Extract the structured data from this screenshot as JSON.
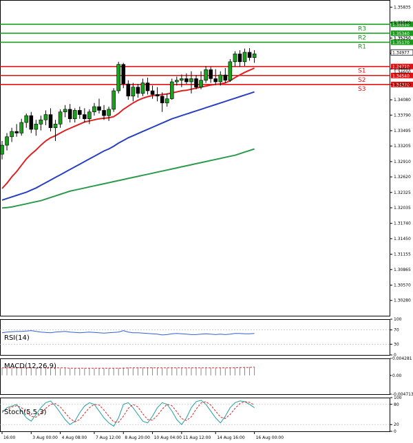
{
  "chart_data": {
    "type": "candlestick",
    "main": {
      "ylim": [
        1.2999,
        1.3597
      ],
      "y_ticks": [
        "1.35835",
        "1.35540",
        "1.35250",
        "1.34960",
        "1.34665",
        "1.34370",
        "1.34080",
        "1.33790",
        "1.33495",
        "1.33205",
        "1.32910",
        "1.32620",
        "1.32325",
        "1.32035",
        "1.31740",
        "1.31450",
        "1.31155",
        "1.30865",
        "1.30570",
        "1.30280"
      ],
      "price_tag": {
        "label": "1.34977",
        "value": 1.34977
      },
      "levels": [
        {
          "name": "R3",
          "label": "1.35510",
          "value": 1.3551,
          "color": "#1a9a1a"
        },
        {
          "name": "R2",
          "label": "1.35340",
          "value": 1.3534,
          "color": "#1a9a1a"
        },
        {
          "name": "R1",
          "label": "1.35170",
          "value": 1.3517,
          "color": "#1a9a1a"
        },
        {
          "name": "S1",
          "label": "1.34710",
          "value": 1.3471,
          "color": "#e01010"
        },
        {
          "name": "S2",
          "label": "1.34540",
          "value": 1.3454,
          "color": "#e01010"
        },
        {
          "name": "S3",
          "label": "1.34370",
          "value": 1.3437,
          "color": "#e01010"
        }
      ],
      "extra_labels": [
        "1.35250",
        "1.34600"
      ],
      "candles": [
        [
          1.3305,
          1.333,
          1.3295,
          1.3322
        ],
        [
          1.3322,
          1.3345,
          1.3312,
          1.3338
        ],
        [
          1.3338,
          1.3355,
          1.3328,
          1.3348
        ],
        [
          1.3348,
          1.3362,
          1.3338,
          1.3345
        ],
        [
          1.3345,
          1.3372,
          1.334,
          1.3365
        ],
        [
          1.3365,
          1.3382,
          1.3355,
          1.3378
        ],
        [
          1.3378,
          1.3385,
          1.3345,
          1.3352
        ],
        [
          1.3352,
          1.337,
          1.334,
          1.3362
        ],
        [
          1.3362,
          1.3378,
          1.335,
          1.337
        ],
        [
          1.337,
          1.3388,
          1.336,
          1.338
        ],
        [
          1.338,
          1.3392,
          1.3348,
          1.3355
        ],
        [
          1.3355,
          1.337,
          1.333,
          1.3362
        ],
        [
          1.3362,
          1.339,
          1.3355,
          1.3385
        ],
        [
          1.3385,
          1.3398,
          1.3375,
          1.339
        ],
        [
          1.339,
          1.34,
          1.3365,
          1.3372
        ],
        [
          1.3372,
          1.3392,
          1.3365,
          1.3388
        ],
        [
          1.3388,
          1.3395,
          1.3372,
          1.338
        ],
        [
          1.338,
          1.3392,
          1.3365,
          1.3372
        ],
        [
          1.3372,
          1.339,
          1.3362,
          1.3385
        ],
        [
          1.3385,
          1.3402,
          1.3378,
          1.3395
        ],
        [
          1.3395,
          1.341,
          1.3382,
          1.3388
        ],
        [
          1.3388,
          1.3398,
          1.337,
          1.3378
        ],
        [
          1.3378,
          1.3395,
          1.3368,
          1.339
        ],
        [
          1.339,
          1.343,
          1.3385,
          1.3425
        ],
        [
          1.3425,
          1.348,
          1.342,
          1.3475
        ],
        [
          1.3475,
          1.3478,
          1.343,
          1.3438
        ],
        [
          1.3438,
          1.3445,
          1.3408,
          1.3415
        ],
        [
          1.3415,
          1.344,
          1.3405,
          1.3432
        ],
        [
          1.3432,
          1.3438,
          1.3412,
          1.342
        ],
        [
          1.342,
          1.3448,
          1.3415,
          1.344
        ],
        [
          1.344,
          1.345,
          1.3418,
          1.3425
        ],
        [
          1.3425,
          1.3435,
          1.341,
          1.3418
        ],
        [
          1.3418,
          1.3432,
          1.3405,
          1.3415
        ],
        [
          1.3415,
          1.3422,
          1.3385,
          1.3402
        ],
        [
          1.3402,
          1.342,
          1.3395,
          1.341
        ],
        [
          1.341,
          1.3448,
          1.3408,
          1.3442
        ],
        [
          1.3442,
          1.3452,
          1.3435,
          1.3445
        ],
        [
          1.3445,
          1.3456,
          1.3432,
          1.3448
        ],
        [
          1.3448,
          1.3458,
          1.3438,
          1.3442
        ],
        [
          1.3442,
          1.3462,
          1.342,
          1.3448
        ],
        [
          1.3448,
          1.3455,
          1.3428,
          1.3432
        ],
        [
          1.3432,
          1.3462,
          1.3428,
          1.3445
        ],
        [
          1.3445,
          1.3472,
          1.344,
          1.3465
        ],
        [
          1.3465,
          1.347,
          1.344,
          1.3448
        ],
        [
          1.3448,
          1.3466,
          1.3436,
          1.3442
        ],
        [
          1.3442,
          1.3462,
          1.3435,
          1.3455
        ],
        [
          1.3455,
          1.3468,
          1.344,
          1.3445
        ],
        [
          1.3445,
          1.3485,
          1.3442,
          1.348
        ],
        [
          1.348,
          1.35,
          1.347,
          1.3495
        ],
        [
          1.3495,
          1.3502,
          1.347,
          1.348
        ],
        [
          1.348,
          1.3505,
          1.3472,
          1.3498
        ],
        [
          1.3498,
          1.3506,
          1.3482,
          1.3488
        ],
        [
          1.3488,
          1.3502,
          1.3478,
          1.3495
        ]
      ],
      "moving_averages": [
        {
          "color": "#e02020",
          "values": [
            1.324,
            1.325,
            1.3262,
            1.3272,
            1.3284,
            1.3296,
            1.3305,
            1.3313,
            1.3322,
            1.333,
            1.3336,
            1.334,
            1.3345,
            1.335,
            1.3354,
            1.3358,
            1.3362,
            1.3366,
            1.3368,
            1.337,
            1.3372,
            1.3373,
            1.3374,
            1.3376,
            1.3382,
            1.339,
            1.3396,
            1.3402,
            1.3407,
            1.3411,
            1.3414,
            1.3416,
            1.3417,
            1.3418,
            1.3419,
            1.3421,
            1.3423,
            1.3425,
            1.3426,
            1.3428,
            1.343,
            1.3432,
            1.3434,
            1.3436,
            1.3437,
            1.3438,
            1.344,
            1.3444,
            1.345,
            1.3455,
            1.346,
            1.3464,
            1.3468
          ]
        },
        {
          "color": "#2840c0",
          "values": [
            1.3218,
            1.3221,
            1.3224,
            1.3227,
            1.323,
            1.3233,
            1.3237,
            1.3241,
            1.3246,
            1.3251,
            1.3256,
            1.3261,
            1.3266,
            1.3271,
            1.3276,
            1.3281,
            1.3286,
            1.3291,
            1.3296,
            1.3301,
            1.3306,
            1.3311,
            1.3315,
            1.332,
            1.3326,
            1.3331,
            1.3336,
            1.334,
            1.3344,
            1.3348,
            1.3352,
            1.3356,
            1.336,
            1.3364,
            1.3368,
            1.3372,
            1.3375,
            1.3378,
            1.3381,
            1.3384,
            1.3387,
            1.339,
            1.3393,
            1.3396,
            1.3399,
            1.3402,
            1.3405,
            1.3408,
            1.3411,
            1.3414,
            1.3417,
            1.342,
            1.3423
          ]
        },
        {
          "color": "#2a9a4a",
          "values": [
            1.3203,
            1.3204,
            1.3205,
            1.3207,
            1.3209,
            1.3211,
            1.3213,
            1.3215,
            1.3217,
            1.322,
            1.3223,
            1.3226,
            1.3229,
            1.3232,
            1.3235,
            1.3237,
            1.3239,
            1.3241,
            1.3243,
            1.3245,
            1.3247,
            1.3249,
            1.3251,
            1.3253,
            1.3255,
            1.3257,
            1.3259,
            1.3261,
            1.3263,
            1.3265,
            1.3267,
            1.3269,
            1.3271,
            1.3273,
            1.3275,
            1.3277,
            1.3279,
            1.3281,
            1.3283,
            1.3285,
            1.3287,
            1.3289,
            1.3291,
            1.3293,
            1.3295,
            1.3297,
            1.3299,
            1.3301,
            1.3303,
            1.3306,
            1.3309,
            1.3312,
            1.3315
          ]
        }
      ]
    },
    "x_labels": [
      "16:00",
      "3 Aug 00:00",
      "4 Aug 08:00",
      "7 Aug 12:00",
      "8 Aug 20:00",
      "10 Aug 04:00",
      "11 Aug 12:00",
      "14 Aug 16:00",
      "16 Aug 00:00"
    ],
    "x_label_index": [
      0,
      6,
      12,
      19,
      25,
      31,
      37,
      44,
      52
    ],
    "rsi": {
      "title": "RSI(14)",
      "ylim": [
        0,
        100
      ],
      "ticks": [
        "100",
        "70",
        "30",
        "0"
      ],
      "line_color": "#2f5fd0",
      "values": [
        62,
        64,
        65,
        66,
        66,
        67,
        68,
        66,
        64,
        63,
        62,
        64,
        65,
        66,
        64,
        63,
        62,
        63,
        64,
        63,
        62,
        61,
        62,
        63,
        64,
        68,
        64,
        62,
        62,
        61,
        60,
        59,
        58,
        56,
        57,
        59,
        60,
        59,
        58,
        57,
        57,
        58,
        59,
        58,
        57,
        58,
        57,
        58,
        60,
        60,
        59,
        59,
        60
      ]
    },
    "macd": {
      "title": "MACD(12,26,9)",
      "ylim": [
        -0.004713,
        0.004281
      ],
      "ticks": [
        "0.004281",
        "0.00",
        "-0.004713"
      ],
      "signal_color": "#e02020",
      "hist": [
        0.0019,
        0.0019,
        0.0019,
        0.0019,
        0.0019,
        0.0019,
        0.0019,
        0.0019,
        0.0019,
        0.0019,
        0.0018,
        0.0018,
        0.0018,
        0.0018,
        0.0018,
        0.0018,
        0.0018,
        0.0018,
        0.0018,
        0.0018,
        0.0018,
        0.0018,
        0.0018,
        0.0018,
        0.0019,
        0.002,
        0.002,
        0.002,
        0.002,
        0.002,
        0.002,
        0.002,
        0.002,
        0.0019,
        0.0019,
        0.0019,
        0.0019,
        0.0019,
        0.0019,
        0.0019,
        0.0019,
        0.0019,
        0.0019,
        0.0019,
        0.0019,
        0.0019,
        0.0019,
        0.0019,
        0.002,
        0.0021,
        0.0021,
        0.0021,
        0.0021
      ],
      "signal": [
        0.0019,
        0.0019,
        0.0019,
        0.0019,
        0.0019,
        0.0019,
        0.0019,
        0.0019,
        0.0019,
        0.0019,
        0.0019,
        0.0019,
        0.0019,
        0.0019,
        0.0018,
        0.0018,
        0.0018,
        0.0018,
        0.0018,
        0.0018,
        0.0018,
        0.0018,
        0.0018,
        0.0018,
        0.0018,
        0.0018,
        0.0019,
        0.0019,
        0.0019,
        0.0019,
        0.0019,
        0.0019,
        0.0019,
        0.0019,
        0.0019,
        0.0019,
        0.0019,
        0.0019,
        0.0019,
        0.0019,
        0.0019,
        0.0019,
        0.0019,
        0.0019,
        0.0019,
        0.0019,
        0.0019,
        0.0019,
        0.0019,
        0.002,
        0.002,
        0.002,
        0.0021
      ]
    },
    "stoch": {
      "title": "Stoch(5,5,3)",
      "ylim": [
        0,
        100
      ],
      "ticks": [
        "100",
        "80",
        "20",
        "0"
      ],
      "k_color": "#20a0a0",
      "d_color": "#e02020",
      "k": [
        55,
        70,
        75,
        80,
        60,
        40,
        30,
        50,
        70,
        85,
        90,
        75,
        55,
        35,
        20,
        30,
        55,
        75,
        85,
        80,
        60,
        40,
        25,
        15,
        40,
        80,
        85,
        70,
        50,
        30,
        25,
        45,
        70,
        85,
        80,
        60,
        35,
        20,
        40,
        70,
        88,
        92,
        80,
        60,
        40,
        25,
        45,
        70,
        85,
        90,
        88,
        80,
        70
      ],
      "d": [
        60,
        65,
        72,
        76,
        70,
        58,
        44,
        42,
        52,
        68,
        80,
        82,
        72,
        55,
        38,
        28,
        35,
        53,
        70,
        80,
        78,
        63,
        45,
        28,
        27,
        45,
        68,
        80,
        72,
        52,
        35,
        33,
        47,
        66,
        80,
        76,
        58,
        38,
        32,
        43,
        66,
        84,
        88,
        78,
        60,
        42,
        38,
        50,
        68,
        82,
        88,
        86,
        78
      ]
    }
  }
}
